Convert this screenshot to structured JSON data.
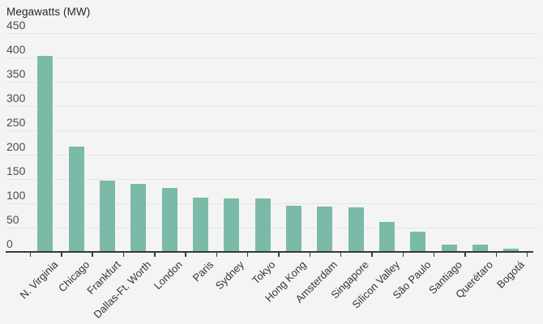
{
  "chart_data": {
    "type": "bar",
    "title": "Megawatts (MW)",
    "categories": [
      "N. Virginia",
      "Chicago",
      "Frankfurt",
      "Dallas-Ft. Worth",
      "London",
      "Paris",
      "Sydney",
      "Tokyo",
      "Hong Kong",
      "Amsterdam",
      "Singapore",
      "Silicon Valley",
      "São Paulo",
      "Santiago",
      "Querétaro",
      "Bogotá"
    ],
    "values": [
      405,
      219,
      148,
      141,
      134,
      114,
      112,
      111,
      96,
      95,
      93,
      64,
      43,
      17,
      16,
      9
    ],
    "xlabel": "",
    "ylabel": "Megawatts (MW)",
    "ylim": [
      0,
      450
    ],
    "ytick_interval": 50,
    "yticks": [
      450,
      400,
      350,
      300,
      250,
      200,
      150,
      100,
      50,
      0
    ],
    "grid": "horizontal",
    "legend": "none",
    "x_label_rotation_deg": -45,
    "bar_color": "#7bbaa8",
    "bar_stroke_color": "#fbfcfb",
    "background_color": "#f4f5f3",
    "gridline_color": "#e2e6e3",
    "axis_color": "#333b38",
    "title_color": "#1f2824",
    "ytick_label_color": "#474f4b",
    "xtick_label_color": "#2e3834"
  }
}
